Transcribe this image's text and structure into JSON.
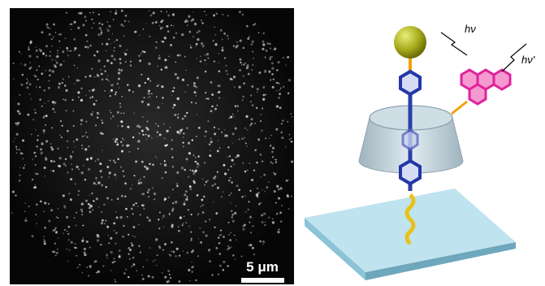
{
  "microscopy": {
    "scale_bar": "5 μm"
  },
  "schematic": {
    "incident_light": "hν",
    "emitted_light": "hν'"
  }
}
